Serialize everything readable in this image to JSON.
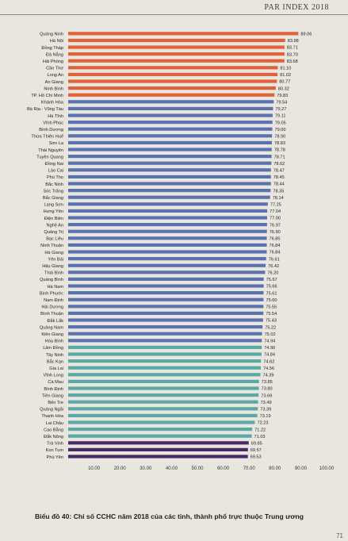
{
  "header": {
    "title": "PAR INDEX 2018"
  },
  "caption": "Biểu đồ 40: Chỉ số CCHC năm 2018 của các tỉnh, thành phố trực thuộc Trung ương",
  "page_number": "71",
  "colors": {
    "orange": "#e0623a",
    "blue": "#5a73b0",
    "teal": "#5aa9a6",
    "purple": "#4a2a66",
    "background": "#e9e6df"
  },
  "chart_data": {
    "type": "bar",
    "orientation": "horizontal",
    "xlim": [
      0,
      100
    ],
    "xticks": [
      "10.00",
      "20.00",
      "30.00",
      "40.00",
      "50.00",
      "60.00",
      "70.00",
      "80.00",
      "90.00",
      "100.00"
    ],
    "grid": false,
    "categories": [
      "Quảng Ninh",
      "Hà Nội",
      "Đồng Tháp",
      "Đà Nẵng",
      "Hải Phòng",
      "Cần Thơ",
      "Long An",
      "An Giang",
      "Ninh Bình",
      "TP. Hồ Chí Minh",
      "Khánh Hòa",
      "Bà Rịa - Vũng Tàu",
      "Hà Tĩnh",
      "Vĩnh Phúc",
      "Bình Dương",
      "Thừa Thiên Huế",
      "Sơn La",
      "Thái Nguyên",
      "Tuyên Quang",
      "Đồng Nai",
      "Lào Cai",
      "Phú Thọ",
      "Bắc Ninh",
      "Sóc Trăng",
      "Bắc Giang",
      "Lạng Sơn",
      "Hưng Yên",
      "Điện Biên",
      "Nghệ An",
      "Quảng Trị",
      "Bạc Liêu",
      "Ninh Thuận",
      "Hà Giang",
      "Yên Bái",
      "Hậu Giang",
      "Thái Bình",
      "Quảng Bình",
      "Hà Nam",
      "Bình Phước",
      "Nam Định",
      "Hải Dương",
      "Bình Thuận",
      "Đắk Lắk",
      "Quảng Nam",
      "Kiên Giang",
      "Hòa Bình",
      "Lâm Đồng",
      "Tây Ninh",
      "Bắc Kạn",
      "Gia Lai",
      "Vĩnh Long",
      "Cà Mau",
      "Bình Định",
      "Tiền Giang",
      "Bến Tre",
      "Quảng Ngãi",
      "Thanh Hóa",
      "Lai Châu",
      "Cao Bằng",
      "Đắk Nông",
      "Trà Vinh",
      "Kon Tum",
      "Phú Yên"
    ],
    "values": [
      89.06,
      83.98,
      83.71,
      83.7,
      83.68,
      81.1,
      81.02,
      80.77,
      80.32,
      79.83,
      79.54,
      79.27,
      79.11,
      79.05,
      79.0,
      78.9,
      78.83,
      78.78,
      78.71,
      78.62,
      78.47,
      78.45,
      78.44,
      78.35,
      78.14,
      77.25,
      77.04,
      77.0,
      76.97,
      76.9,
      76.85,
      76.84,
      76.84,
      76.61,
      76.42,
      76.2,
      75.67,
      75.66,
      75.61,
      75.6,
      75.55,
      75.54,
      75.43,
      75.22,
      75.02,
      74.94,
      74.9,
      74.84,
      74.62,
      74.56,
      74.39,
      73.85,
      73.8,
      73.69,
      73.49,
      73.39,
      73.19,
      72.23,
      71.22,
      71.03,
      69.85,
      69.57,
      69.53
    ],
    "value_labels": [
      "89.06",
      "83.98",
      "83.71",
      "83.70",
      "83.68",
      "81.10",
      "81.02",
      "80.77",
      "80.32",
      "79.83",
      "79.54",
      "79.27",
      "79.11",
      "79.05",
      "79.00",
      "78.90",
      "78.83",
      "78.78",
      "78.71",
      "78.62",
      "78.47",
      "78.45",
      "78.44",
      "78.35",
      "78.14",
      "77.25",
      "77.04",
      "77.00",
      "76.97",
      "76.90",
      "76.85",
      "76.84",
      "76.84",
      "76.61",
      "76.42",
      "76.20",
      "75.67",
      "75.66",
      "75.61",
      "75.60",
      "75.55",
      "75.54",
      "75.43",
      "75.22",
      "75.02",
      "74.94",
      "74.90",
      "74.84",
      "74.62",
      "74.56",
      "74.39",
      "73.85",
      "73.80",
      "73.69",
      "73.49",
      "73.39",
      "73.19",
      "72.23",
      "71.22",
      "71.03",
      "69.85",
      "69.57",
      "69.53"
    ],
    "bar_color_groups": [
      {
        "color": "#e0623a",
        "count": 10
      },
      {
        "color": "#5a73b0",
        "count": 36
      },
      {
        "color": "#5aa9a6",
        "count": 14
      },
      {
        "color": "#4a2a66",
        "count": 3
      }
    ]
  }
}
